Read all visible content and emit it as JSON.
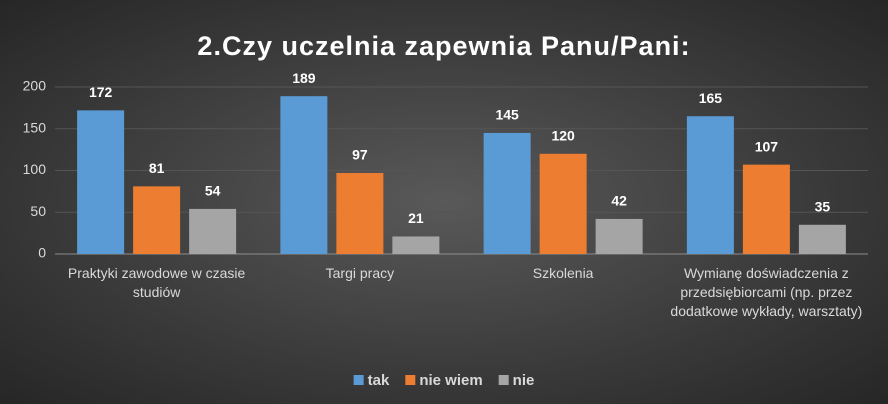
{
  "chart_data": {
    "type": "bar",
    "title": "2.Czy uczelnia zapewnia Panu/Pani:",
    "categories": [
      "Praktyki zawodowe w czasie studiów",
      "Targi pracy",
      "Szkolenia",
      "Wymianę doświadczenia z przedsiębiorcami  (np. przez dodatkowe wykłady, warsztaty)"
    ],
    "series": [
      {
        "name": "tak",
        "color": "#5b9bd5",
        "values": [
          172,
          189,
          145,
          165
        ]
      },
      {
        "name": "nie wiem",
        "color": "#ed7d31",
        "values": [
          81,
          97,
          120,
          107
        ]
      },
      {
        "name": "nie",
        "color": "#a5a5a5",
        "values": [
          54,
          21,
          42,
          35
        ]
      }
    ],
    "ylim": [
      0,
      200
    ],
    "yticks": [
      0,
      50,
      100,
      150,
      200
    ],
    "grid": true,
    "legend": "bottom"
  }
}
